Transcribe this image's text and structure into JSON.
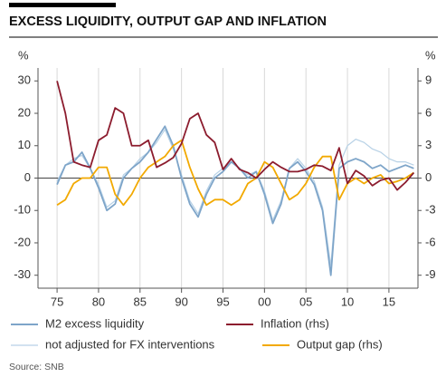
{
  "chart_data": {
    "type": "line",
    "title": "EXCESS LIQUIDITY, OUTPUT GAP AND INFLATION",
    "y_label": "%",
    "y2_label": "%",
    "source": "Source: SNB",
    "x": [
      1975,
      1976,
      1977,
      1978,
      1979,
      1980,
      1981,
      1982,
      1983,
      1984,
      1985,
      1986,
      1987,
      1988,
      1989,
      1990,
      1991,
      1992,
      1993,
      1994,
      1995,
      1996,
      1997,
      1998,
      1999,
      2000,
      2001,
      2002,
      2003,
      2004,
      2005,
      2006,
      2007,
      2008,
      2009,
      2010,
      2011,
      2012,
      2013,
      2014,
      2015,
      2016,
      2017,
      2018
    ],
    "xlim": [
      1972.7,
      2018.5
    ],
    "xticks": [
      {
        "value": 1975,
        "label": "75"
      },
      {
        "value": 1980,
        "label": "80"
      },
      {
        "value": 1985,
        "label": "85"
      },
      {
        "value": 1990,
        "label": "90"
      },
      {
        "value": 1995,
        "label": "95"
      },
      {
        "value": 2000,
        "label": "00"
      },
      {
        "value": 2005,
        "label": "05"
      },
      {
        "value": 2010,
        "label": "10"
      },
      {
        "value": 2015,
        "label": "15"
      }
    ],
    "ylim": [
      -34,
      34
    ],
    "yticks": [
      30,
      20,
      10,
      0,
      -10,
      -20,
      -30
    ],
    "y2lim": [
      -10.2,
      10.2
    ],
    "y2ticks": [
      9,
      6,
      3,
      0,
      -3,
      -6,
      -9
    ],
    "grid": "vertical",
    "series": [
      {
        "name": "M2 excess liquidity",
        "color": "#7ea5c9",
        "values": [
          -2,
          4,
          5,
          8,
          3,
          -3,
          -10,
          -8,
          0,
          3,
          5,
          8,
          12,
          16,
          10,
          0,
          -8,
          -12,
          -5,
          0,
          2,
          5,
          3,
          0,
          2,
          -5,
          -14,
          -8,
          3,
          5,
          2,
          -2,
          -10,
          -30,
          3,
          5,
          6,
          5,
          3,
          4,
          2,
          3,
          4,
          3
        ]
      },
      {
        "name": "Inflation (rhs)",
        "color": "#8c1c2e",
        "axis": "y2",
        "values": [
          9,
          6,
          1.5,
          1.2,
          1,
          3.5,
          4,
          6.5,
          6,
          3,
          3,
          3.5,
          1,
          1.4,
          1.9,
          3.2,
          5.5,
          6,
          4,
          3.3,
          0.8,
          1.8,
          0.8,
          0.5,
          0,
          0.8,
          1.5,
          1,
          0.6,
          0.6,
          0.8,
          1.2,
          1.1,
          0.7,
          2.8,
          -0.5,
          0.7,
          0.2,
          -0.7,
          -0.2,
          0,
          -1.1,
          -0.4,
          0.5
        ]
      },
      {
        "name": "not adjusted for FX interventions",
        "color": "#b7d1e6",
        "values": [
          -1,
          4,
          6,
          7,
          3,
          -2,
          -9,
          -7,
          1,
          3,
          6,
          8,
          11,
          15,
          9,
          1,
          -7,
          -11,
          -4,
          1,
          3,
          5,
          3,
          1,
          2,
          -4,
          -13,
          -7,
          3,
          6,
          3,
          -1,
          -9,
          -27,
          4,
          10,
          12,
          11,
          9,
          8,
          6,
          5,
          5,
          4
        ]
      },
      {
        "name": "Output gap (rhs)",
        "color": "#f2a900",
        "axis": "y2",
        "values": [
          -2.5,
          -2,
          -0.5,
          0,
          0,
          1,
          1,
          -1.5,
          -2.5,
          -1.5,
          0,
          1,
          1.5,
          2,
          3,
          3.5,
          1,
          -1,
          -2.5,
          -2,
          -2,
          -2.5,
          -2,
          -0.5,
          0,
          1.5,
          1,
          -0.5,
          -2,
          -1.5,
          -0.5,
          1,
          2,
          2,
          -2,
          -0.5,
          0,
          -0.5,
          0,
          0.3,
          -0.5,
          -0.3,
          0,
          0.5
        ]
      }
    ]
  }
}
